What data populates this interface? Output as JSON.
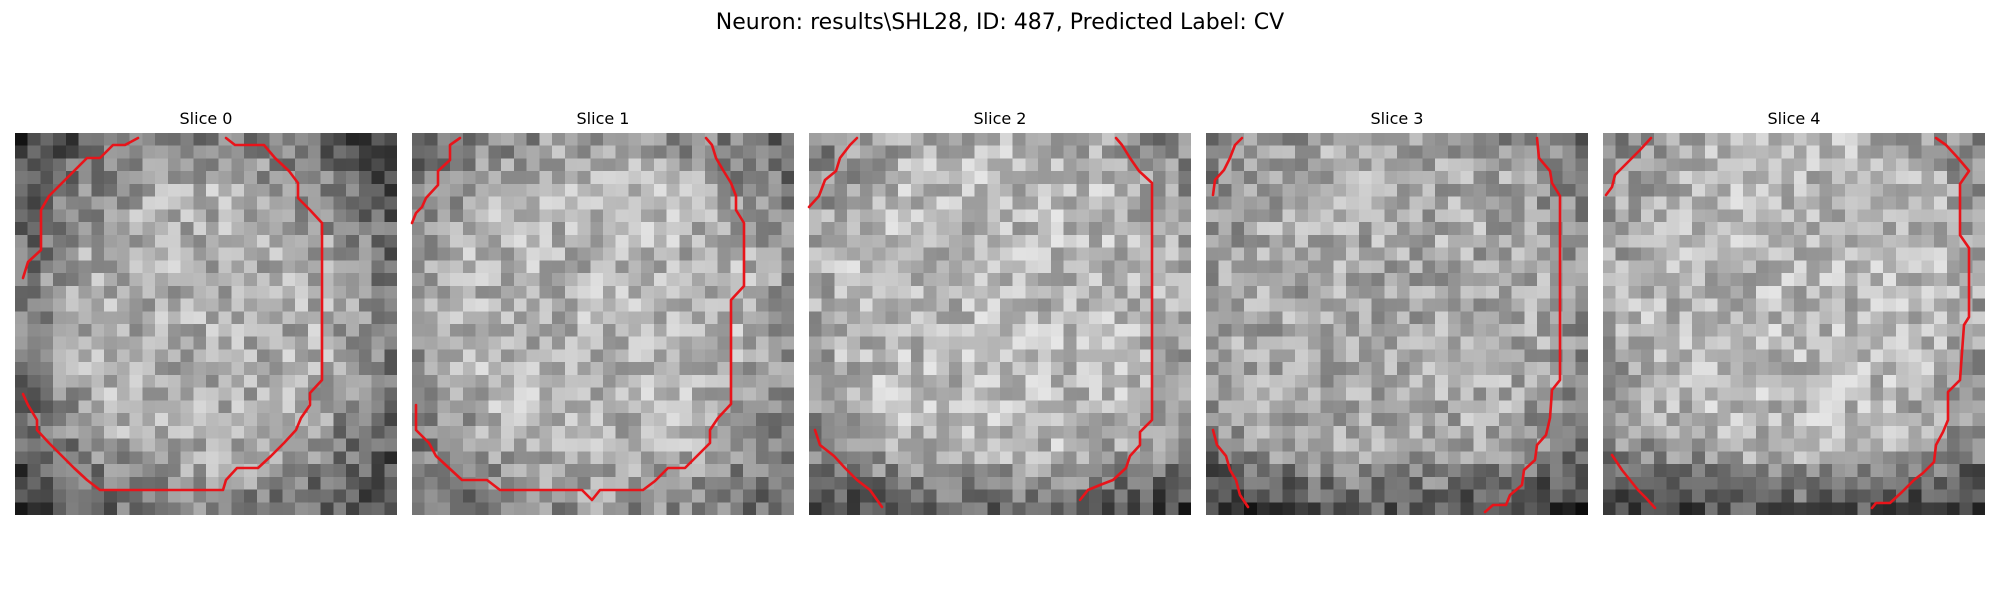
{
  "figure": {
    "suptitle": "Neuron: results\\SHL28, ID: 487, Predicted Label: CV"
  },
  "panels": [
    {
      "title": "Slice 0"
    },
    {
      "title": "Slice 1"
    },
    {
      "title": "Slice 2"
    },
    {
      "title": "Slice 3"
    },
    {
      "title": "Slice 4"
    }
  ],
  "colors": {
    "contour": "#e8141a",
    "colormap": "gray"
  }
}
